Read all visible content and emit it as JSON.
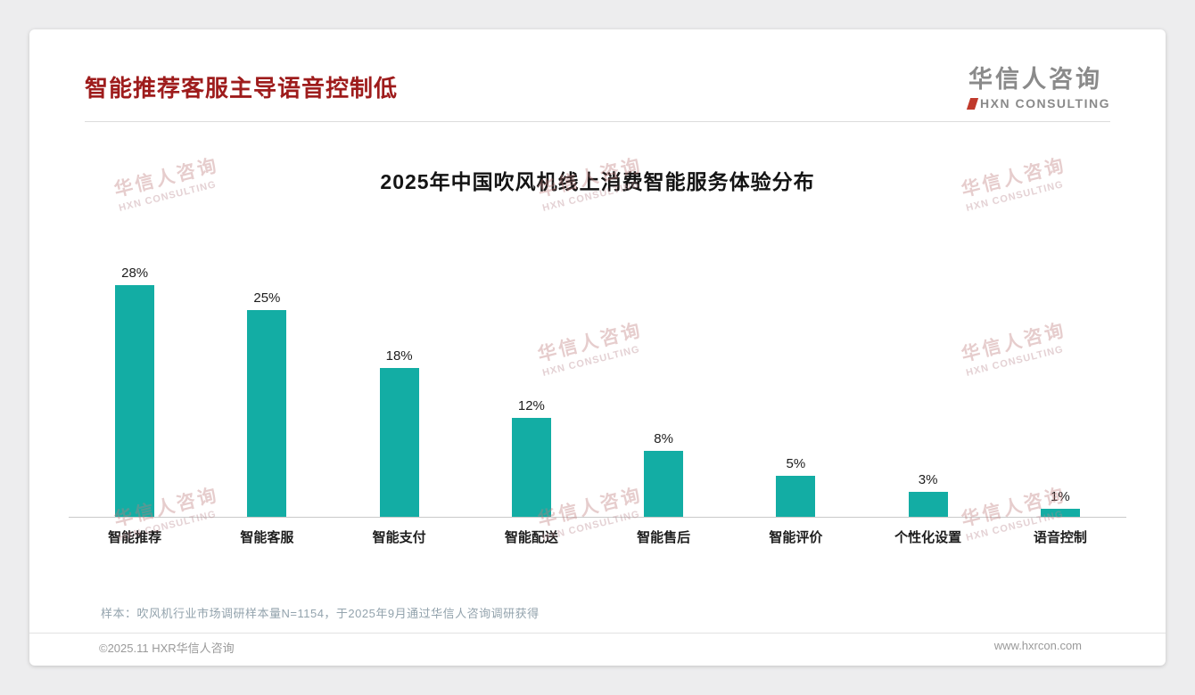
{
  "header": {
    "title": "智能推荐客服主导语音控制低",
    "logo_name": "华信人咨询",
    "logo_subtitle": "HXN CONSULTING"
  },
  "watermark": {
    "line1": "华信人咨询",
    "line2": "HXN CONSULTING"
  },
  "chart_data": {
    "type": "bar",
    "title": "2025年中国吹风机线上消费智能服务体验分布",
    "categories": [
      "智能推荐",
      "智能客服",
      "智能支付",
      "智能配送",
      "智能售后",
      "智能评价",
      "个性化设置",
      "语音控制"
    ],
    "values": [
      28,
      25,
      18,
      12,
      8,
      5,
      3,
      1
    ],
    "value_labels": [
      "28%",
      "25%",
      "18%",
      "12%",
      "8%",
      "5%",
      "3%",
      "1%"
    ],
    "unit": "%",
    "ylim": [
      0,
      30
    ],
    "xlabel": "",
    "ylabel": "",
    "grid": false,
    "legend": false,
    "bar_color": "#13ada4"
  },
  "footer": {
    "sample_note": "样本：吹风机行业市场调研样本量N=1154，于2025年9月通过华信人咨询调研获得",
    "copyright": "©2025.11 HXR华信人咨询",
    "website": "www.hxrcon.com"
  },
  "colors": {
    "title_red": "#9e1c1c",
    "bar_teal": "#13ada4",
    "watermark_pink": "#c07d7d"
  }
}
